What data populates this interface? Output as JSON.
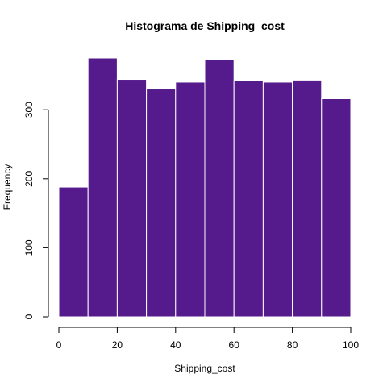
{
  "chart_data": {
    "type": "bar",
    "title": "Histograma de Shipping_cost",
    "xlabel": "Shipping_cost",
    "ylabel": "Frequency",
    "bins": [
      {
        "start": 0,
        "end": 10,
        "value": 188
      },
      {
        "start": 10,
        "end": 20,
        "value": 375
      },
      {
        "start": 20,
        "end": 30,
        "value": 344
      },
      {
        "start": 30,
        "end": 40,
        "value": 330
      },
      {
        "start": 40,
        "end": 50,
        "value": 340
      },
      {
        "start": 50,
        "end": 60,
        "value": 373
      },
      {
        "start": 60,
        "end": 70,
        "value": 342
      },
      {
        "start": 70,
        "end": 80,
        "value": 340
      },
      {
        "start": 80,
        "end": 90,
        "value": 343
      },
      {
        "start": 90,
        "end": 100,
        "value": 316
      }
    ],
    "xlim": [
      0,
      100
    ],
    "ylim": [
      0,
      375
    ],
    "xticks": [
      0,
      20,
      40,
      60,
      80,
      100
    ],
    "yticks": [
      0,
      100,
      200,
      300
    ],
    "bar_color": "#551a8b",
    "bar_border_color": "#ffffff",
    "grid": false
  }
}
